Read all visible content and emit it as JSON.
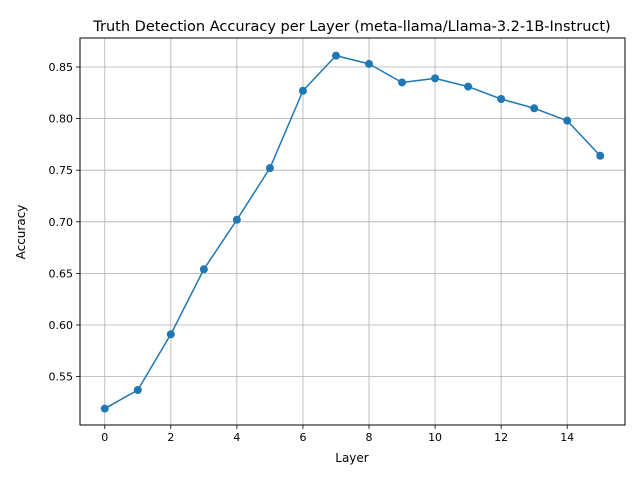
{
  "chart_data": {
    "type": "line",
    "title": "Truth Detection Accuracy per Layer (meta-llama/Llama-3.2-1B-Instruct)",
    "xlabel": "Layer",
    "ylabel": "Accuracy",
    "grid": true,
    "xlim": [
      -0.75,
      15.75
    ],
    "ylim": [
      0.5031,
      0.8781
    ],
    "xticks": [
      0,
      2,
      4,
      6,
      8,
      10,
      12,
      14
    ],
    "xtick_labels": [
      "0",
      "2",
      "4",
      "6",
      "8",
      "10",
      "12",
      "14"
    ],
    "yticks": [
      0.55,
      0.6,
      0.65,
      0.7,
      0.75,
      0.8,
      0.85
    ],
    "ytick_labels": [
      "0.55",
      "0.60",
      "0.65",
      "0.70",
      "0.75",
      "0.80",
      "0.85"
    ],
    "series": [
      {
        "name": "Accuracy",
        "color": "#1f77b4",
        "marker": "circle",
        "x": [
          0,
          1,
          2,
          3,
          4,
          5,
          6,
          7,
          8,
          9,
          10,
          11,
          12,
          13,
          14,
          15
        ],
        "values": [
          0.519,
          0.537,
          0.591,
          0.654,
          0.702,
          0.752,
          0.827,
          0.861,
          0.853,
          0.835,
          0.839,
          0.831,
          0.819,
          0.81,
          0.798,
          0.764
        ]
      }
    ]
  }
}
